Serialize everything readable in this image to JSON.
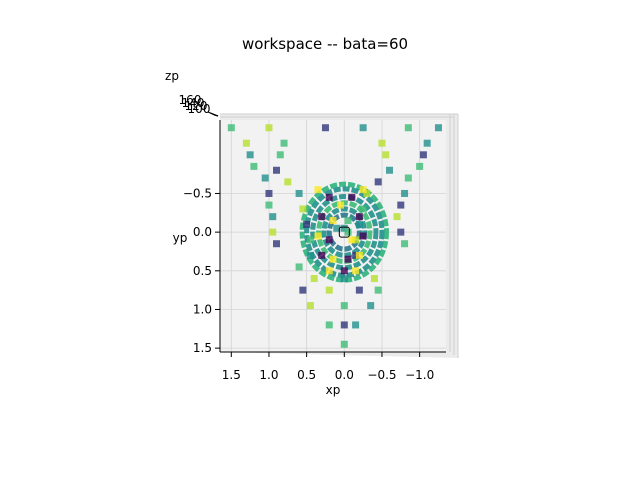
{
  "chart_data": {
    "type": "scatter",
    "title": "workspace -- bata=60",
    "xlabel": "xp",
    "ylabel": "yp",
    "zlabel": "zp",
    "view": "3D axes viewed from top (z toward viewer)",
    "xlim": [
      1.65,
      -1.35
    ],
    "ylim": [
      -1.45,
      1.55
    ],
    "x_ticks": [
      "1.5",
      "1.0",
      "0.5",
      "0.0",
      "−0.5",
      "−1.0"
    ],
    "y_ticks": [
      "−0.5",
      "0.0",
      "0.5",
      "1.0",
      "1.5"
    ],
    "z_ticks": [
      "160",
      "140",
      "120",
      "100"
    ],
    "marker": "square",
    "colormap": "viridis",
    "grid": true,
    "colors": [
      "#440154",
      "#30367a",
      "#21908c",
      "#3cbb75",
      "#b5de2b",
      "#fde725"
    ],
    "points": [
      [
        1.5,
        -1.35,
        3
      ],
      [
        1.0,
        -1.35,
        4
      ],
      [
        0.25,
        -1.35,
        1
      ],
      [
        -0.25,
        -1.35,
        2
      ],
      [
        -0.85,
        -1.35,
        3
      ],
      [
        -1.25,
        -1.35,
        2
      ],
      [
        1.3,
        -1.15,
        4
      ],
      [
        0.8,
        -1.15,
        3
      ],
      [
        -0.5,
        -1.15,
        4
      ],
      [
        -1.1,
        -1.15,
        2
      ],
      [
        1.25,
        -1.0,
        2
      ],
      [
        0.85,
        -1.0,
        3
      ],
      [
        -0.55,
        -1.0,
        4
      ],
      [
        -1.05,
        -1.0,
        1
      ],
      [
        1.2,
        -0.85,
        3
      ],
      [
        0.9,
        -0.8,
        1
      ],
      [
        -0.6,
        -0.8,
        2
      ],
      [
        -1.0,
        -0.85,
        3
      ],
      [
        1.05,
        -0.7,
        2
      ],
      [
        0.75,
        -0.65,
        4
      ],
      [
        -0.45,
        -0.65,
        1
      ],
      [
        -0.85,
        -0.7,
        3
      ],
      [
        1.0,
        -0.5,
        1
      ],
      [
        0.6,
        -0.5,
        2
      ],
      [
        -0.3,
        -0.5,
        4
      ],
      [
        -0.8,
        -0.5,
        2
      ],
      [
        1.0,
        -0.35,
        3
      ],
      [
        0.55,
        -0.3,
        4
      ],
      [
        -0.25,
        -0.3,
        3
      ],
      [
        -0.75,
        -0.35,
        1
      ],
      [
        0.95,
        -0.2,
        2
      ],
      [
        0.5,
        -0.1,
        1
      ],
      [
        -0.2,
        -0.1,
        2
      ],
      [
        -0.7,
        -0.2,
        4
      ],
      [
        0.95,
        0.0,
        4
      ],
      [
        0.45,
        0.1,
        3
      ],
      [
        -0.15,
        0.1,
        4
      ],
      [
        -0.75,
        0.0,
        1
      ],
      [
        0.9,
        0.15,
        1
      ],
      [
        0.45,
        0.3,
        2
      ],
      [
        -0.15,
        0.3,
        1
      ],
      [
        -0.8,
        0.15,
        3
      ],
      [
        0.6,
        0.45,
        3
      ],
      [
        0.4,
        0.6,
        4
      ],
      [
        0.0,
        0.6,
        2
      ],
      [
        -0.4,
        0.6,
        4
      ],
      [
        0.55,
        0.75,
        1
      ],
      [
        0.2,
        0.75,
        4
      ],
      [
        -0.2,
        0.75,
        1
      ],
      [
        -0.45,
        0.75,
        3
      ],
      [
        0.45,
        0.95,
        4
      ],
      [
        0.0,
        0.95,
        3
      ],
      [
        -0.35,
        0.95,
        2
      ],
      [
        0.2,
        1.2,
        3
      ],
      [
        0.0,
        1.2,
        1
      ],
      [
        -0.15,
        1.2,
        2
      ],
      [
        0.0,
        1.45,
        3
      ],
      [
        0.35,
        -0.55,
        5
      ],
      [
        0.2,
        -0.45,
        0
      ],
      [
        0.05,
        -0.35,
        5
      ],
      [
        -0.1,
        -0.45,
        0
      ],
      [
        -0.25,
        -0.55,
        5
      ],
      [
        0.3,
        -0.2,
        0
      ],
      [
        0.15,
        -0.15,
        5
      ],
      [
        -0.05,
        -0.15,
        3
      ],
      [
        -0.2,
        -0.2,
        0
      ],
      [
        0.35,
        0.05,
        5
      ],
      [
        0.2,
        0.1,
        0
      ],
      [
        -0.1,
        0.1,
        5
      ],
      [
        -0.25,
        0.05,
        0
      ],
      [
        0.3,
        0.3,
        0
      ],
      [
        0.15,
        0.35,
        5
      ],
      [
        -0.05,
        0.35,
        0
      ],
      [
        -0.2,
        0.3,
        5
      ],
      [
        0.2,
        0.5,
        5
      ],
      [
        0.0,
        0.5,
        0
      ],
      [
        -0.15,
        0.5,
        5
      ],
      [
        0.1,
        -0.05,
        2
      ],
      [
        0.0,
        -0.05,
        2
      ],
      [
        -0.05,
        0.0,
        3
      ]
    ],
    "rings": [
      {
        "cx": 0.0,
        "cy": 0.0,
        "rx": 0.56,
        "ry": 0.62,
        "stroke": "#2fb47c"
      },
      {
        "cx": 0.0,
        "cy": 0.0,
        "rx": 0.5,
        "ry": 0.56,
        "stroke": "#21908c"
      },
      {
        "cx": 0.0,
        "cy": 0.0,
        "rx": 0.42,
        "ry": 0.46,
        "stroke": "#21908c"
      },
      {
        "cx": 0.0,
        "cy": 0.0,
        "rx": 0.34,
        "ry": 0.38,
        "stroke": "#3cbb75"
      },
      {
        "cx": 0.0,
        "cy": 0.0,
        "rx": 0.27,
        "ry": 0.3,
        "stroke": "#21908c"
      },
      {
        "cx": 0.0,
        "cy": 0.0,
        "rx": 0.2,
        "ry": 0.22,
        "stroke": "#2a788e"
      }
    ]
  }
}
